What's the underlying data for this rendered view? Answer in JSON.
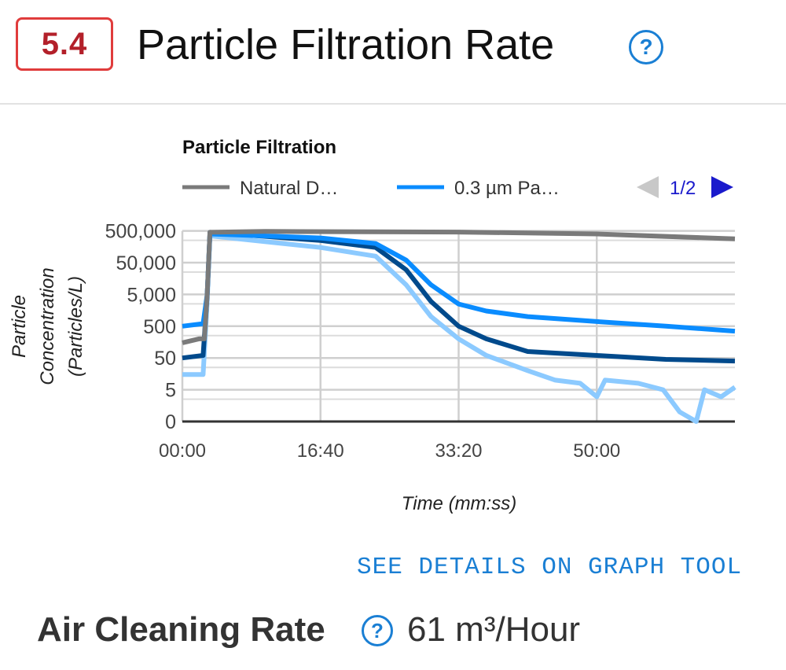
{
  "header": {
    "badge": "5.4",
    "title": "Particle Filtration Rate",
    "help_icon": "question-circle-icon"
  },
  "chart_data": {
    "type": "line",
    "title": "Particle Filtration",
    "xlabel": "Time (mm:ss)",
    "ylabel_lines": [
      "Particle",
      "Concentration",
      "(Particles/L)"
    ],
    "yscale": "log",
    "x_ticks": [
      "00:00",
      "16:40",
      "33:20",
      "50:00"
    ],
    "y_ticks": [
      "0",
      "5",
      "50",
      "500",
      "5,000",
      "50,000",
      "500,000"
    ],
    "xlim": [
      "00:00",
      "66:40"
    ],
    "grid": true,
    "legend": {
      "placement": "top",
      "entries": [
        "Natural D…",
        "0.3 µm Pa…"
      ],
      "page": "1/2"
    },
    "series": [
      {
        "name": "Natural D…",
        "color": "#7a7a7a",
        "x": [
          "00:00",
          "02:00",
          "02:40",
          "03:00",
          "03:20",
          "10:00",
          "33:20",
          "50:00",
          "66:40"
        ],
        "y": [
          150,
          200,
          200,
          5000,
          450000,
          480000,
          460000,
          400000,
          280000
        ]
      },
      {
        "name": "0.3 µm Pa…",
        "color": "#0a8cff",
        "x": [
          "00:00",
          "02:30",
          "03:00",
          "03:20",
          "16:40",
          "23:20",
          "27:00",
          "30:00",
          "33:20",
          "36:40",
          "41:40",
          "50:00",
          "58:20",
          "66:40"
        ],
        "y": [
          500,
          600,
          5000,
          400000,
          300000,
          200000,
          60000,
          10000,
          2500,
          1500,
          1000,
          700,
          500,
          350
        ]
      },
      {
        "color": "#004a8c",
        "x": [
          "00:00",
          "02:30",
          "03:00",
          "03:20",
          "16:40",
          "23:20",
          "27:00",
          "30:00",
          "33:20",
          "36:40",
          "41:40",
          "50:00",
          "58:20",
          "66:40"
        ],
        "y": [
          50,
          60,
          5000,
          450000,
          250000,
          150000,
          30000,
          3000,
          500,
          200,
          80,
          60,
          45,
          40
        ]
      },
      {
        "color": "#8ccaff",
        "x": [
          "00:00",
          "02:30",
          "03:00",
          "03:20",
          "16:40",
          "23:20",
          "27:00",
          "30:00",
          "33:20",
          "36:40",
          "41:40",
          "45:00",
          "48:00",
          "50:00",
          "51:00",
          "55:00",
          "58:00",
          "60:00",
          "62:00",
          "63:00",
          "65:00",
          "66:40"
        ],
        "y": [
          15,
          15,
          3000,
          350000,
          150000,
          80000,
          10000,
          1000,
          200,
          60,
          20,
          10,
          8,
          3,
          10,
          8,
          5,
          1,
          0,
          5,
          3,
          6
        ]
      }
    ]
  },
  "footer": {
    "link": "SEE DETAILS ON GRAPH TOOL",
    "air_label": "Air Cleaning Rate",
    "air_value": "61 m³/Hour",
    "help_icon": "question-circle-icon"
  }
}
